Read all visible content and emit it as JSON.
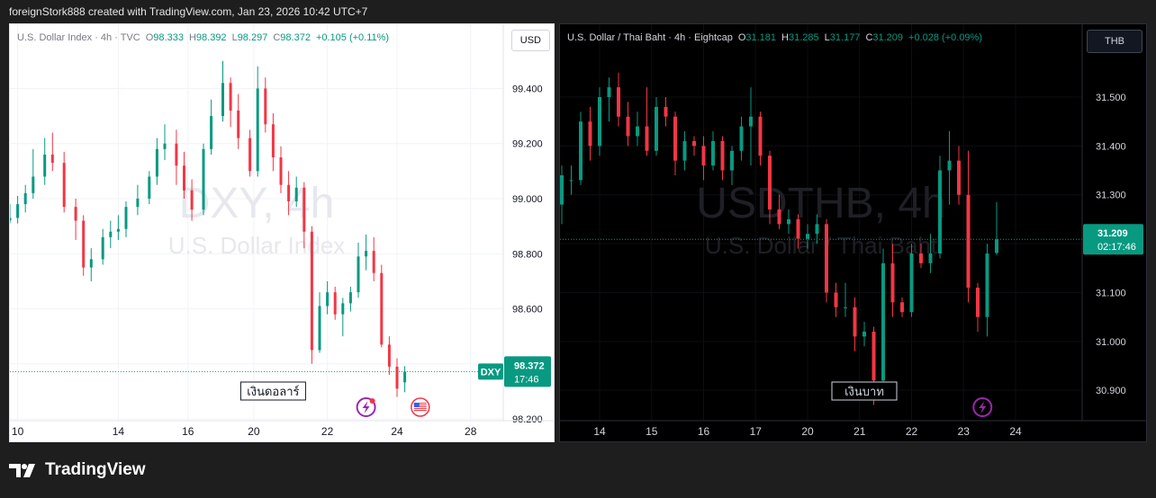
{
  "header": {
    "caption": "foreignStork888 created with TradingView.com, Jan 23, 2026 10:42 UTC+7"
  },
  "footer": {
    "brand": "TradingView"
  },
  "chart_data": [
    {
      "type": "candlestick",
      "legend": {
        "name": "U.S. Dollar Index · 4h · TVC",
        "o_label": "O",
        "o": "98.333",
        "h_label": "H",
        "h": "98.392",
        "l_label": "L",
        "l": "98.297",
        "c_label": "C",
        "c": "98.372",
        "change": "+0.105 (+0.11%)"
      },
      "currency_button": "USD",
      "watermark": {
        "symbol": "DXY, 4h",
        "description": "U.S. Dollar Index"
      },
      "y_ticks": [
        "99.400",
        "99.200",
        "99.000",
        "98.800",
        "98.600",
        "98.400",
        "98.200"
      ],
      "y_tick_values": [
        99.4,
        99.2,
        99.0,
        98.8,
        98.6,
        98.4,
        98.2
      ],
      "ylim": [
        98.21,
        99.47
      ],
      "x_ticks": [
        "10",
        "14",
        "16",
        "20",
        "22",
        "24",
        "28"
      ],
      "x_tick_index": [
        2,
        28,
        46,
        63,
        82,
        100,
        119
      ],
      "price_line": {
        "value": 98.372,
        "label_symbol": "DXY",
        "label_price": "98.372",
        "label_countdown": "17:46"
      },
      "annotation": {
        "text": "เงินดอลาร์",
        "index": 68
      },
      "event_index": [
        92,
        106
      ],
      "colors": {
        "up": "#089981",
        "down": "#f23645",
        "bg": "#ffffff",
        "grid": "#f0f3fa",
        "text": "#131722",
        "axis": "#131722"
      },
      "candles": [
        {
          "o": 98.92,
          "h": 98.98,
          "l": 98.91,
          "c": 98.93
        },
        {
          "o": 98.93,
          "h": 99.01,
          "l": 98.91,
          "c": 98.98
        },
        {
          "o": 98.98,
          "h": 99.05,
          "l": 98.95,
          "c": 99.02
        },
        {
          "o": 99.02,
          "h": 99.18,
          "l": 99.0,
          "c": 99.08
        },
        {
          "o": 99.08,
          "h": 99.22,
          "l": 99.05,
          "c": 99.16
        },
        {
          "o": 99.16,
          "h": 99.24,
          "l": 99.1,
          "c": 99.13
        },
        {
          "o": 99.13,
          "h": 99.17,
          "l": 98.95,
          "c": 98.97
        },
        {
          "o": 98.97,
          "h": 99.0,
          "l": 98.85,
          "c": 98.92
        },
        {
          "o": 98.92,
          "h": 98.94,
          "l": 98.72,
          "c": 98.75
        },
        {
          "o": 98.75,
          "h": 98.82,
          "l": 98.7,
          "c": 98.78
        },
        {
          "o": 98.78,
          "h": 98.89,
          "l": 98.76,
          "c": 98.86
        },
        {
          "o": 98.86,
          "h": 98.92,
          "l": 98.82,
          "c": 98.88
        },
        {
          "o": 98.88,
          "h": 98.94,
          "l": 98.85,
          "c": 98.89
        },
        {
          "o": 98.89,
          "h": 98.99,
          "l": 98.86,
          "c": 98.97
        },
        {
          "o": 98.97,
          "h": 99.05,
          "l": 98.94,
          "c": 99.0
        },
        {
          "o": 99.0,
          "h": 99.1,
          "l": 98.98,
          "c": 99.08
        },
        {
          "o": 99.08,
          "h": 99.22,
          "l": 99.05,
          "c": 99.18
        },
        {
          "o": 99.18,
          "h": 99.27,
          "l": 99.14,
          "c": 99.2
        },
        {
          "o": 99.2,
          "h": 99.25,
          "l": 99.05,
          "c": 99.12
        },
        {
          "o": 99.12,
          "h": 99.17,
          "l": 99.0,
          "c": 99.03
        },
        {
          "o": 99.03,
          "h": 99.07,
          "l": 98.92,
          "c": 98.96
        },
        {
          "o": 98.96,
          "h": 99.2,
          "l": 98.94,
          "c": 99.18
        },
        {
          "o": 99.18,
          "h": 99.36,
          "l": 99.16,
          "c": 99.3
        },
        {
          "o": 99.3,
          "h": 99.5,
          "l": 99.28,
          "c": 99.42
        },
        {
          "o": 99.42,
          "h": 99.44,
          "l": 99.26,
          "c": 99.32
        },
        {
          "o": 99.32,
          "h": 99.38,
          "l": 99.18,
          "c": 99.22
        },
        {
          "o": 99.22,
          "h": 99.25,
          "l": 99.08,
          "c": 99.1
        },
        {
          "o": 99.1,
          "h": 99.48,
          "l": 99.08,
          "c": 99.4
        },
        {
          "o": 99.4,
          "h": 99.44,
          "l": 99.24,
          "c": 99.27
        },
        {
          "o": 99.27,
          "h": 99.31,
          "l": 99.1,
          "c": 99.15
        },
        {
          "o": 99.15,
          "h": 99.19,
          "l": 99.02,
          "c": 99.05
        },
        {
          "o": 99.05,
          "h": 99.1,
          "l": 98.94,
          "c": 98.99
        },
        {
          "o": 98.99,
          "h": 99.08,
          "l": 98.97,
          "c": 99.04
        },
        {
          "o": 99.04,
          "h": 99.06,
          "l": 98.82,
          "c": 98.88
        },
        {
          "o": 98.88,
          "h": 98.9,
          "l": 98.4,
          "c": 98.45
        },
        {
          "o": 98.45,
          "h": 98.66,
          "l": 98.44,
          "c": 98.61
        },
        {
          "o": 98.61,
          "h": 98.7,
          "l": 98.58,
          "c": 98.66
        },
        {
          "o": 98.66,
          "h": 98.68,
          "l": 98.56,
          "c": 98.58
        },
        {
          "o": 98.58,
          "h": 98.64,
          "l": 98.5,
          "c": 98.62
        },
        {
          "o": 98.62,
          "h": 98.68,
          "l": 98.59,
          "c": 98.66
        },
        {
          "o": 98.66,
          "h": 98.84,
          "l": 98.64,
          "c": 98.79
        },
        {
          "o": 98.79,
          "h": 98.87,
          "l": 98.74,
          "c": 98.81
        },
        {
          "o": 98.81,
          "h": 98.86,
          "l": 98.7,
          "c": 98.73
        },
        {
          "o": 98.73,
          "h": 98.76,
          "l": 98.46,
          "c": 98.47
        },
        {
          "o": 98.47,
          "h": 98.5,
          "l": 98.36,
          "c": 98.39
        },
        {
          "o": 98.39,
          "h": 98.42,
          "l": 98.28,
          "c": 98.31
        },
        {
          "o": 98.333,
          "h": 98.392,
          "l": 98.297,
          "c": 98.372
        }
      ],
      "candle_index": [
        0,
        2,
        4,
        6,
        9,
        11,
        14,
        17,
        19,
        21,
        24,
        26,
        28,
        30,
        33,
        36,
        38,
        40,
        43,
        45,
        47,
        50,
        52,
        55,
        57,
        59,
        62,
        64,
        66,
        68,
        70,
        72,
        74,
        76,
        78,
        80,
        82,
        84,
        86,
        88,
        90,
        92,
        94,
        96,
        98,
        100,
        102
      ]
    },
    {
      "type": "candlestick",
      "legend": {
        "name": "U.S. Dollar / Thai Baht · 4h · Eightcap",
        "o_label": "O",
        "o": "31.181",
        "h_label": "H",
        "h": "31.285",
        "l_label": "L",
        "l": "31.177",
        "c_label": "C",
        "c": "31.209",
        "change": "+0.028 (+0.09%)"
      },
      "currency_button": "THB",
      "watermark": {
        "symbol": "USDTHB, 4h",
        "description": "U.S. Dollar / Thai Baht"
      },
      "y_ticks": [
        "31.500",
        "31.400",
        "31.300",
        "31.200",
        "31.100",
        "31.000",
        "30.900"
      ],
      "y_tick_values": [
        31.5,
        31.4,
        31.3,
        31.2,
        31.1,
        31.0,
        30.9
      ],
      "ylim": [
        30.847,
        31.557
      ],
      "x_ticks": [
        "14",
        "15",
        "16",
        "17",
        "20",
        "21",
        "22",
        "23",
        "24"
      ],
      "x_tick_index": [
        8,
        19,
        30,
        41,
        52,
        63,
        74,
        85,
        96
      ],
      "price_line": {
        "value": 31.209,
        "label_symbol": "",
        "label_price": "31.209",
        "label_countdown": "02:17:46"
      },
      "annotation": {
        "text": "เงินบาท",
        "index": 64
      },
      "event_index": [
        89
      ],
      "colors": {
        "up": "#089981",
        "down": "#f23645",
        "bg": "#000000",
        "grid": "#0c0e12",
        "text": "#d1d4dc",
        "axis": "#d1d4dc"
      },
      "candles": [
        {
          "o": 31.28,
          "h": 31.36,
          "l": 31.24,
          "c": 31.34
        },
        {
          "o": 31.33,
          "h": 31.36,
          "l": 31.3,
          "c": 31.33
        },
        {
          "o": 31.33,
          "h": 31.47,
          "l": 31.32,
          "c": 31.45
        },
        {
          "o": 31.45,
          "h": 31.48,
          "l": 31.37,
          "c": 31.4
        },
        {
          "o": 31.4,
          "h": 31.52,
          "l": 31.38,
          "c": 31.5
        },
        {
          "o": 31.5,
          "h": 31.54,
          "l": 31.45,
          "c": 31.52
        },
        {
          "o": 31.52,
          "h": 31.55,
          "l": 31.44,
          "c": 31.46
        },
        {
          "o": 31.46,
          "h": 31.49,
          "l": 31.4,
          "c": 31.42
        },
        {
          "o": 31.42,
          "h": 31.47,
          "l": 31.4,
          "c": 31.44
        },
        {
          "o": 31.44,
          "h": 31.52,
          "l": 31.38,
          "c": 31.39
        },
        {
          "o": 31.39,
          "h": 31.5,
          "l": 31.38,
          "c": 31.48
        },
        {
          "o": 31.48,
          "h": 31.5,
          "l": 31.44,
          "c": 31.46
        },
        {
          "o": 31.46,
          "h": 31.47,
          "l": 31.34,
          "c": 31.37
        },
        {
          "o": 31.37,
          "h": 31.43,
          "l": 31.35,
          "c": 31.41
        },
        {
          "o": 31.41,
          "h": 31.42,
          "l": 31.38,
          "c": 31.4
        },
        {
          "o": 31.4,
          "h": 31.42,
          "l": 31.33,
          "c": 31.36
        },
        {
          "o": 31.36,
          "h": 31.43,
          "l": 31.35,
          "c": 31.41
        },
        {
          "o": 31.41,
          "h": 31.42,
          "l": 31.33,
          "c": 31.35
        },
        {
          "o": 31.35,
          "h": 31.4,
          "l": 31.32,
          "c": 31.39
        },
        {
          "o": 31.39,
          "h": 31.46,
          "l": 31.37,
          "c": 31.44
        },
        {
          "o": 31.44,
          "h": 31.52,
          "l": 31.36,
          "c": 31.46
        },
        {
          "o": 31.46,
          "h": 31.47,
          "l": 31.36,
          "c": 31.38
        },
        {
          "o": 31.38,
          "h": 31.39,
          "l": 31.24,
          "c": 31.27
        },
        {
          "o": 31.27,
          "h": 31.3,
          "l": 31.23,
          "c": 31.24
        },
        {
          "o": 31.24,
          "h": 31.27,
          "l": 31.22,
          "c": 31.25
        },
        {
          "o": 31.25,
          "h": 31.26,
          "l": 31.19,
          "c": 31.21
        },
        {
          "o": 31.21,
          "h": 31.24,
          "l": 31.19,
          "c": 31.22
        },
        {
          "o": 31.22,
          "h": 31.26,
          "l": 31.2,
          "c": 31.24
        },
        {
          "o": 31.24,
          "h": 31.25,
          "l": 31.08,
          "c": 31.1
        },
        {
          "o": 31.1,
          "h": 31.12,
          "l": 31.05,
          "c": 31.07
        },
        {
          "o": 31.07,
          "h": 31.12,
          "l": 31.05,
          "c": 31.07
        },
        {
          "o": 31.07,
          "h": 31.09,
          "l": 30.98,
          "c": 31.01
        },
        {
          "o": 31.01,
          "h": 31.04,
          "l": 30.99,
          "c": 31.02
        },
        {
          "o": 31.02,
          "h": 31.03,
          "l": 30.87,
          "c": 30.92
        },
        {
          "o": 30.92,
          "h": 31.19,
          "l": 30.9,
          "c": 31.16
        },
        {
          "o": 31.16,
          "h": 31.2,
          "l": 31.05,
          "c": 31.08
        },
        {
          "o": 31.08,
          "h": 31.09,
          "l": 31.05,
          "c": 31.06
        },
        {
          "o": 31.06,
          "h": 31.2,
          "l": 31.05,
          "c": 31.18
        },
        {
          "o": 31.18,
          "h": 31.2,
          "l": 31.15,
          "c": 31.16
        },
        {
          "o": 31.16,
          "h": 31.22,
          "l": 31.14,
          "c": 31.18
        },
        {
          "o": 31.18,
          "h": 31.38,
          "l": 31.17,
          "c": 31.35
        },
        {
          "o": 31.35,
          "h": 31.43,
          "l": 31.28,
          "c": 31.37
        },
        {
          "o": 31.37,
          "h": 31.4,
          "l": 31.28,
          "c": 31.3
        },
        {
          "o": 31.3,
          "h": 31.39,
          "l": 31.08,
          "c": 31.11
        },
        {
          "o": 31.11,
          "h": 31.12,
          "l": 31.02,
          "c": 31.05
        },
        {
          "o": 31.05,
          "h": 31.2,
          "l": 31.01,
          "c": 31.18
        },
        {
          "o": 31.181,
          "h": 31.285,
          "l": 31.177,
          "c": 31.209
        }
      ],
      "candle_index": [
        0,
        2,
        4,
        6,
        8,
        10,
        12,
        14,
        16,
        18,
        20,
        22,
        24,
        26,
        28,
        30,
        32,
        34,
        36,
        38,
        40,
        42,
        44,
        46,
        48,
        50,
        52,
        54,
        56,
        58,
        60,
        62,
        64,
        66,
        68,
        70,
        72,
        74,
        76,
        78,
        80,
        82,
        84,
        86,
        88,
        90,
        92
      ]
    }
  ]
}
